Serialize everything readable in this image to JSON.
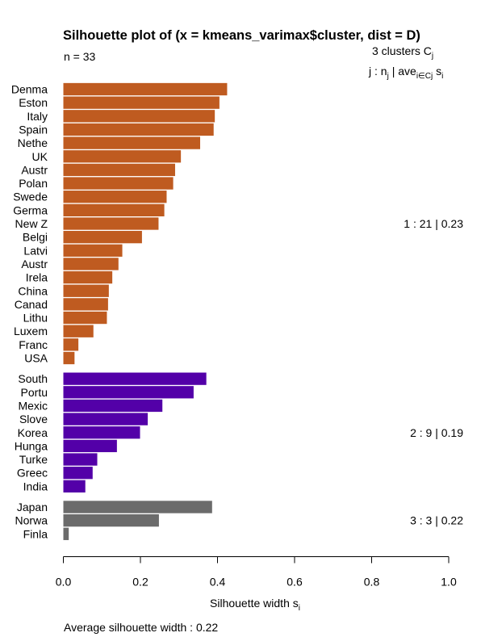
{
  "chart_data": {
    "type": "bar",
    "orientation": "horizontal",
    "title": "Silhouette plot of (x = kmeans_varimax$cluster, dist = D)",
    "n_label": "n = 33",
    "header": {
      "line1_prefix": "3  clusters  C",
      "line1_sub": "j",
      "line2_prefix": "j :  n",
      "line2_sub": "j",
      "line2_mid": " | ave",
      "line2_sub2": "i∈Cj",
      "line2_suffix": "  s",
      "line2_sub3": "i"
    },
    "xlabel_main": "Silhouette width s",
    "xlabel_sub": "i",
    "xlim": [
      0,
      1
    ],
    "xticks": [
      "0.0",
      "0.2",
      "0.4",
      "0.6",
      "0.8",
      "1.0"
    ],
    "footer": "Average silhouette width :  0.22",
    "clusters": [
      {
        "id": 1,
        "color": "#BF5B20",
        "summary": "1 :   21  |  0.23",
        "items": [
          {
            "label": "Denma",
            "value": 0.425
          },
          {
            "label": "Eston",
            "value": 0.405
          },
          {
            "label": "Italy",
            "value": 0.393
          },
          {
            "label": "Spain",
            "value": 0.39
          },
          {
            "label": "Nethe",
            "value": 0.355
          },
          {
            "label": "UK",
            "value": 0.305
          },
          {
            "label": "Austr",
            "value": 0.29
          },
          {
            "label": "Polan",
            "value": 0.285
          },
          {
            "label": "Swede",
            "value": 0.268
          },
          {
            "label": "Germa",
            "value": 0.262
          },
          {
            "label": "New Z",
            "value": 0.247
          },
          {
            "label": "Belgi",
            "value": 0.204
          },
          {
            "label": "Latvi",
            "value": 0.153
          },
          {
            "label": "Austr",
            "value": 0.143
          },
          {
            "label": "Irela",
            "value": 0.127
          },
          {
            "label": "China",
            "value": 0.118
          },
          {
            "label": "Canad",
            "value": 0.116
          },
          {
            "label": "Lithu",
            "value": 0.113
          },
          {
            "label": "Luxem",
            "value": 0.078
          },
          {
            "label": "Franc",
            "value": 0.039
          },
          {
            "label": "USA",
            "value": 0.029
          }
        ]
      },
      {
        "id": 2,
        "color": "#5300A8",
        "summary": "2 :   9  |  0.19",
        "items": [
          {
            "label": "South",
            "value": 0.371
          },
          {
            "label": "Portu",
            "value": 0.338
          },
          {
            "label": "Mexic",
            "value": 0.257
          },
          {
            "label": "Slove",
            "value": 0.219
          },
          {
            "label": "Korea",
            "value": 0.199
          },
          {
            "label": "Hunga",
            "value": 0.139
          },
          {
            "label": "Turke",
            "value": 0.088
          },
          {
            "label": "Greec",
            "value": 0.076
          },
          {
            "label": "India",
            "value": 0.057
          }
        ]
      },
      {
        "id": 3,
        "color": "#6B6B6B",
        "summary": "3 :   3  |  0.22",
        "items": [
          {
            "label": "Japan",
            "value": 0.386
          },
          {
            "label": "Norwa",
            "value": 0.248
          },
          {
            "label": "Finla",
            "value": 0.014
          }
        ]
      }
    ]
  }
}
